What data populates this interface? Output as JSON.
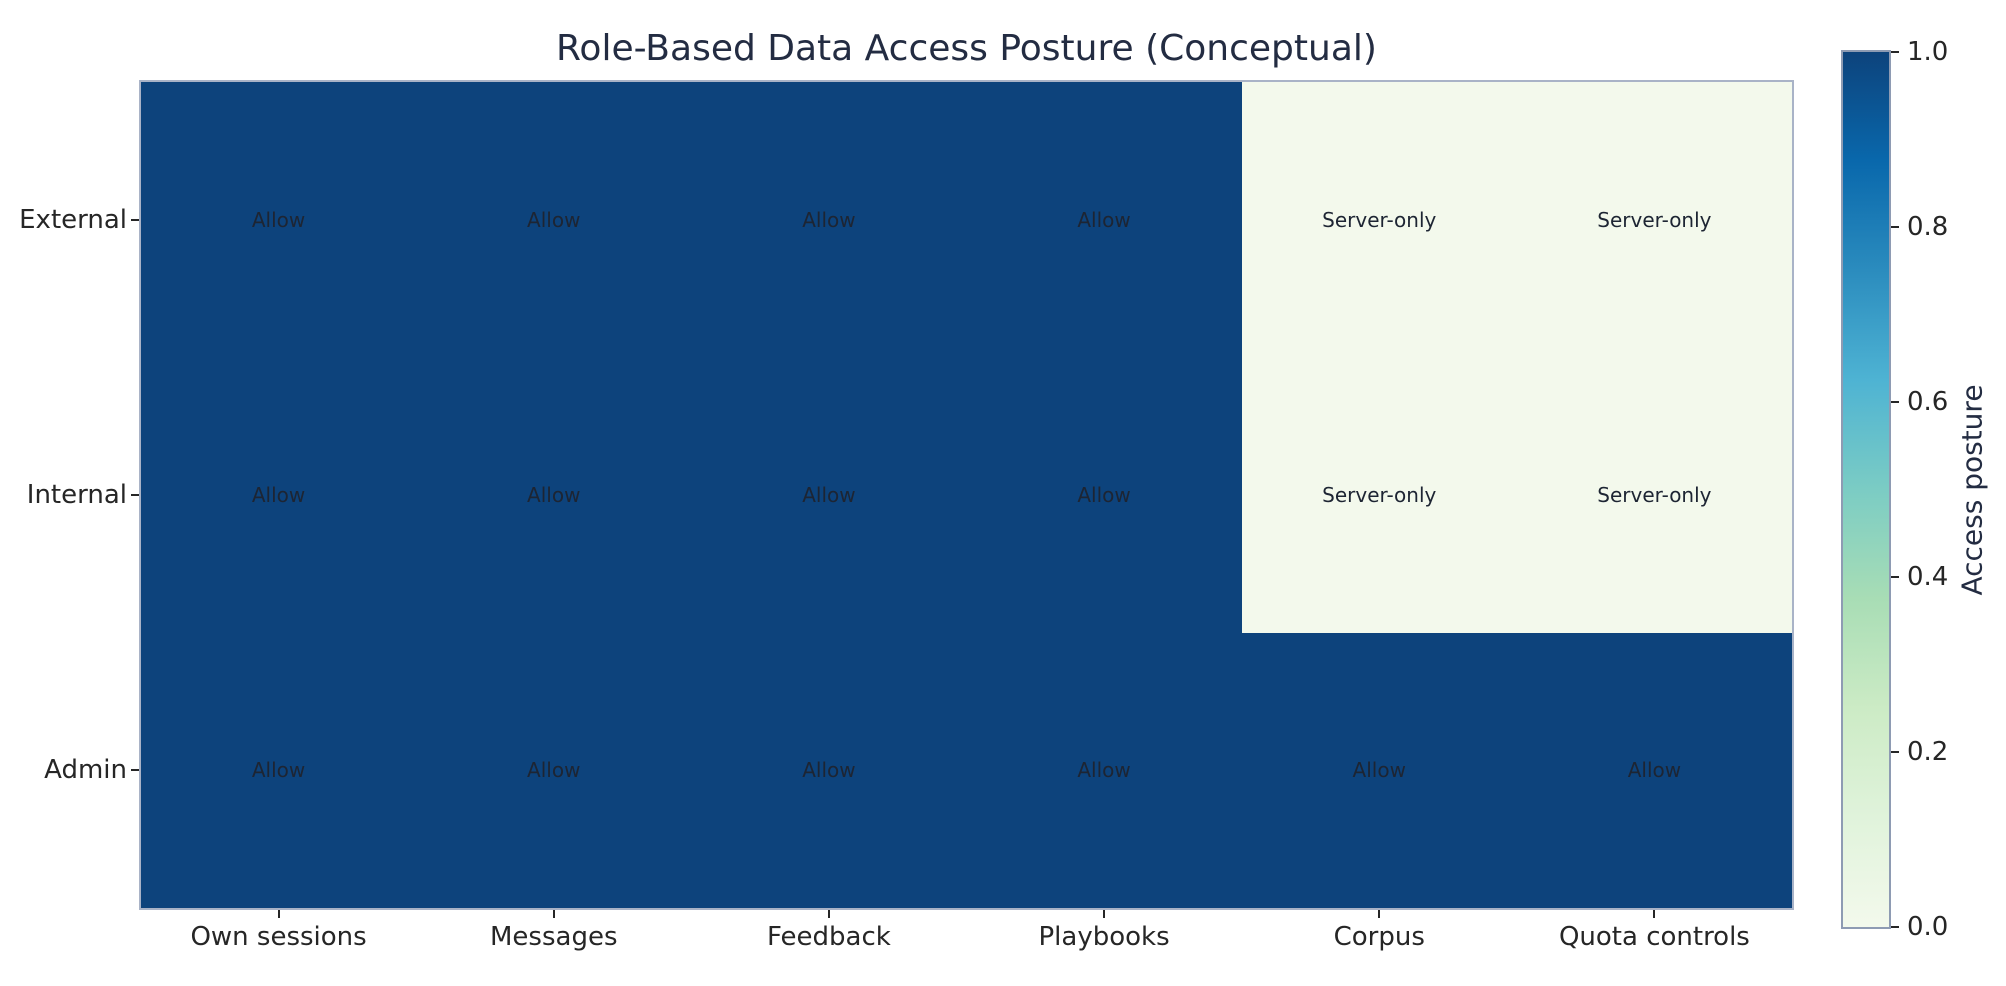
{
  "chart_data": {
    "type": "heatmap",
    "title": "Role-Based Data Access Posture (Conceptual)",
    "rows": [
      "External",
      "Internal",
      "Admin"
    ],
    "columns": [
      "Own sessions",
      "Messages",
      "Feedback",
      "Playbooks",
      "Corpus",
      "Quota controls"
    ],
    "values": [
      [
        1,
        1,
        1,
        1,
        0,
        0
      ],
      [
        1,
        1,
        1,
        1,
        0,
        0
      ],
      [
        1,
        1,
        1,
        1,
        1,
        1
      ]
    ],
    "cell_labels": [
      [
        "Allow",
        "Allow",
        "Allow",
        "Allow",
        "Server-only",
        "Server-only"
      ],
      [
        "Allow",
        "Allow",
        "Allow",
        "Allow",
        "Server-only",
        "Server-only"
      ],
      [
        "Allow",
        "Allow",
        "Allow",
        "Allow",
        "Allow",
        "Allow"
      ]
    ],
    "value_range": [
      0,
      1
    ],
    "cell_colors": {
      "high": "#0d437c",
      "low": "#f3f9ec"
    },
    "colorbar": {
      "label": "Access posture",
      "tick_labels": [
        "1.0",
        "0.8",
        "0.6",
        "0.4",
        "0.2",
        "0.0"
      ],
      "tick_values": [
        1.0,
        0.8,
        0.6,
        0.4,
        0.2,
        0.0
      ],
      "gradient_stops": [
        {
          "offset": 0,
          "color": "#f3f9ec"
        },
        {
          "offset": 12.5,
          "color": "#e0f3db"
        },
        {
          "offset": 25,
          "color": "#ccebc5"
        },
        {
          "offset": 37.5,
          "color": "#a8ddb5"
        },
        {
          "offset": 50,
          "color": "#7bccc4"
        },
        {
          "offset": 62.5,
          "color": "#4eb3d3"
        },
        {
          "offset": 75,
          "color": "#2b8cbe"
        },
        {
          "offset": 87.5,
          "color": "#0968ac"
        },
        {
          "offset": 100,
          "color": "#0d437c"
        }
      ]
    },
    "layout_hints": {
      "grid": false,
      "legend_position": "right-colorbar"
    }
  },
  "styles": {
    "title_color": "#232c42",
    "tick_label_color": "#262626",
    "annotation_color": "#1d2533",
    "axes_border_color": "#a9b3c7",
    "colorbar_border_color": "#8e9bb3",
    "background": "#ffffff"
  }
}
